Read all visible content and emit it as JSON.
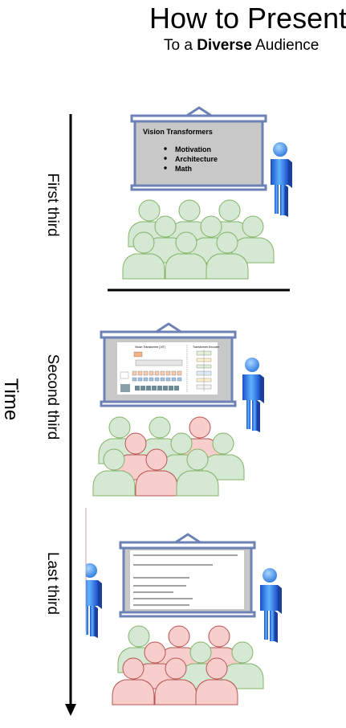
{
  "header": {
    "title": "How to Present",
    "subtitle_prefix": "To a ",
    "subtitle_bold": "Diverse",
    "subtitle_suffix": " Audience"
  },
  "timeline": {
    "axis_label": "Time",
    "phases": [
      {
        "label": "First third"
      },
      {
        "label": "Second third"
      },
      {
        "label": "Last third"
      }
    ]
  },
  "slide1": {
    "title": "Vision Transformers",
    "bullets": [
      "Motivation",
      "Architecture",
      "Math"
    ]
  },
  "slide2": {
    "left_title": "Vision Transformer (ViT)",
    "right_title": "Transformer Encoder"
  },
  "colors": {
    "screen_frame": "#6c82b5",
    "screen_fill": "#c8c8c8",
    "audience_engaged_fill": "#d5e8d4",
    "audience_engaged_stroke": "#82b366",
    "audience_lost_fill": "#f8cecc",
    "audience_lost_stroke": "#b85450",
    "presenter_blue": "#3d8fe8"
  }
}
